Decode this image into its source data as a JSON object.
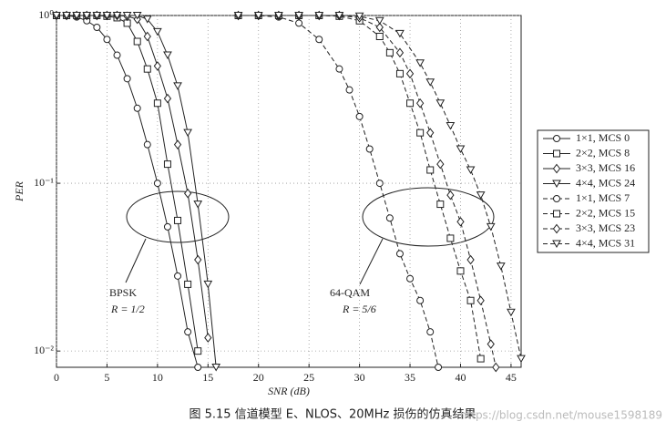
{
  "chart_data": {
    "type": "line",
    "xlabel": "SNR (dB)",
    "ylabel": "PER",
    "xlim": [
      0,
      46
    ],
    "xticks": [
      0,
      5,
      10,
      15,
      20,
      25,
      30,
      35,
      40,
      45
    ],
    "ylim": [
      0.008,
      1
    ],
    "log_y": true,
    "yticks": [
      {
        "value": 1,
        "label": "10⁰"
      },
      {
        "value": 0.1,
        "label": "10⁻¹"
      },
      {
        "value": 0.01,
        "label": "10⁻²"
      }
    ],
    "grid": true,
    "legend": "right",
    "series": [
      {
        "name": "1×1, MCS 0",
        "color": "#222222",
        "marker": "o",
        "linestyle": "solid",
        "x": [
          0,
          1,
          2,
          3,
          4,
          5,
          6,
          7,
          8,
          9,
          10,
          11,
          12,
          13,
          14
        ],
        "values": [
          1,
          1,
          0.98,
          0.93,
          0.85,
          0.72,
          0.58,
          0.42,
          0.28,
          0.17,
          0.1,
          0.055,
          0.028,
          0.013,
          0.008
        ]
      },
      {
        "name": "2×2, MCS 8",
        "color": "#222222",
        "marker": "s",
        "linestyle": "solid",
        "x": [
          0,
          1,
          2,
          3,
          4,
          5,
          6,
          7,
          8,
          9,
          10,
          11,
          12,
          13,
          14
        ],
        "values": [
          1,
          1,
          1,
          1,
          1,
          0.99,
          0.97,
          0.9,
          0.7,
          0.48,
          0.3,
          0.13,
          0.06,
          0.025,
          0.01
        ]
      },
      {
        "name": "3×3, MCS 16",
        "color": "#222222",
        "marker": "d",
        "linestyle": "solid",
        "x": [
          0,
          1,
          2,
          3,
          4,
          5,
          6,
          7,
          8,
          9,
          10,
          11,
          12,
          13,
          14,
          15
        ],
        "values": [
          1,
          1,
          1,
          1,
          1,
          1,
          1,
          0.99,
          0.95,
          0.75,
          0.5,
          0.32,
          0.17,
          0.087,
          0.035,
          0.012
        ]
      },
      {
        "name": "4×4, MCS 24",
        "color": "#222222",
        "marker": "v",
        "linestyle": "solid",
        "x": [
          0,
          1,
          2,
          3,
          4,
          5,
          6,
          7,
          8,
          9,
          10,
          11,
          12,
          13,
          14,
          15,
          15.8
        ],
        "values": [
          1,
          1,
          1,
          1,
          1,
          1,
          1,
          1,
          1,
          0.95,
          0.8,
          0.58,
          0.38,
          0.2,
          0.075,
          0.025,
          0.008
        ]
      },
      {
        "name": "1×1, MCS 7",
        "color": "#222222",
        "marker": "o",
        "linestyle": "dashed",
        "x": [
          18,
          20,
          22,
          24,
          26,
          28,
          29,
          30,
          31,
          32,
          33,
          34,
          35,
          36,
          37,
          37.8
        ],
        "values": [
          1,
          1,
          0.98,
          0.9,
          0.72,
          0.48,
          0.36,
          0.25,
          0.16,
          0.1,
          0.062,
          0.038,
          0.027,
          0.02,
          0.013,
          0.008
        ]
      },
      {
        "name": "2×2, MCS 15",
        "color": "#222222",
        "marker": "s",
        "linestyle": "dashed",
        "x": [
          18,
          20,
          22,
          24,
          26,
          28,
          30,
          32,
          33,
          34,
          35,
          36,
          37,
          38,
          39,
          40,
          41,
          42
        ],
        "values": [
          1,
          1,
          1,
          1,
          1,
          0.99,
          0.93,
          0.75,
          0.6,
          0.45,
          0.3,
          0.2,
          0.12,
          0.075,
          0.047,
          0.03,
          0.02,
          0.009
        ]
      },
      {
        "name": "3×3, MCS 23",
        "color": "#222222",
        "marker": "d",
        "linestyle": "dashed",
        "x": [
          18,
          20,
          22,
          24,
          26,
          28,
          30,
          32,
          34,
          35,
          36,
          37,
          38,
          39,
          40,
          41,
          42,
          43,
          43.5
        ],
        "values": [
          1,
          1,
          1,
          1,
          1,
          1,
          0.97,
          0.85,
          0.6,
          0.45,
          0.3,
          0.2,
          0.13,
          0.085,
          0.059,
          0.035,
          0.02,
          0.011,
          0.008
        ]
      },
      {
        "name": "4×4, MCS 31",
        "color": "#222222",
        "marker": "v",
        "linestyle": "dashed",
        "x": [
          18,
          20,
          22,
          24,
          26,
          28,
          30,
          32,
          34,
          36,
          37,
          38,
          39,
          40,
          41,
          42,
          43,
          44,
          45,
          46
        ],
        "values": [
          1,
          1,
          1,
          1,
          1,
          1,
          0.99,
          0.93,
          0.78,
          0.52,
          0.4,
          0.3,
          0.22,
          0.16,
          0.12,
          0.085,
          0.055,
          0.032,
          0.017,
          0.009
        ]
      }
    ],
    "annotations": [
      "BPSK",
      "R = 1/2",
      "64-QAM",
      "R = 5/6"
    ],
    "caption": "图 5.15   信道模型 E、NLOS、20MHz 损伤的仿真结果",
    "watermark": "https://blog.csdn.net/mouse1598189"
  }
}
